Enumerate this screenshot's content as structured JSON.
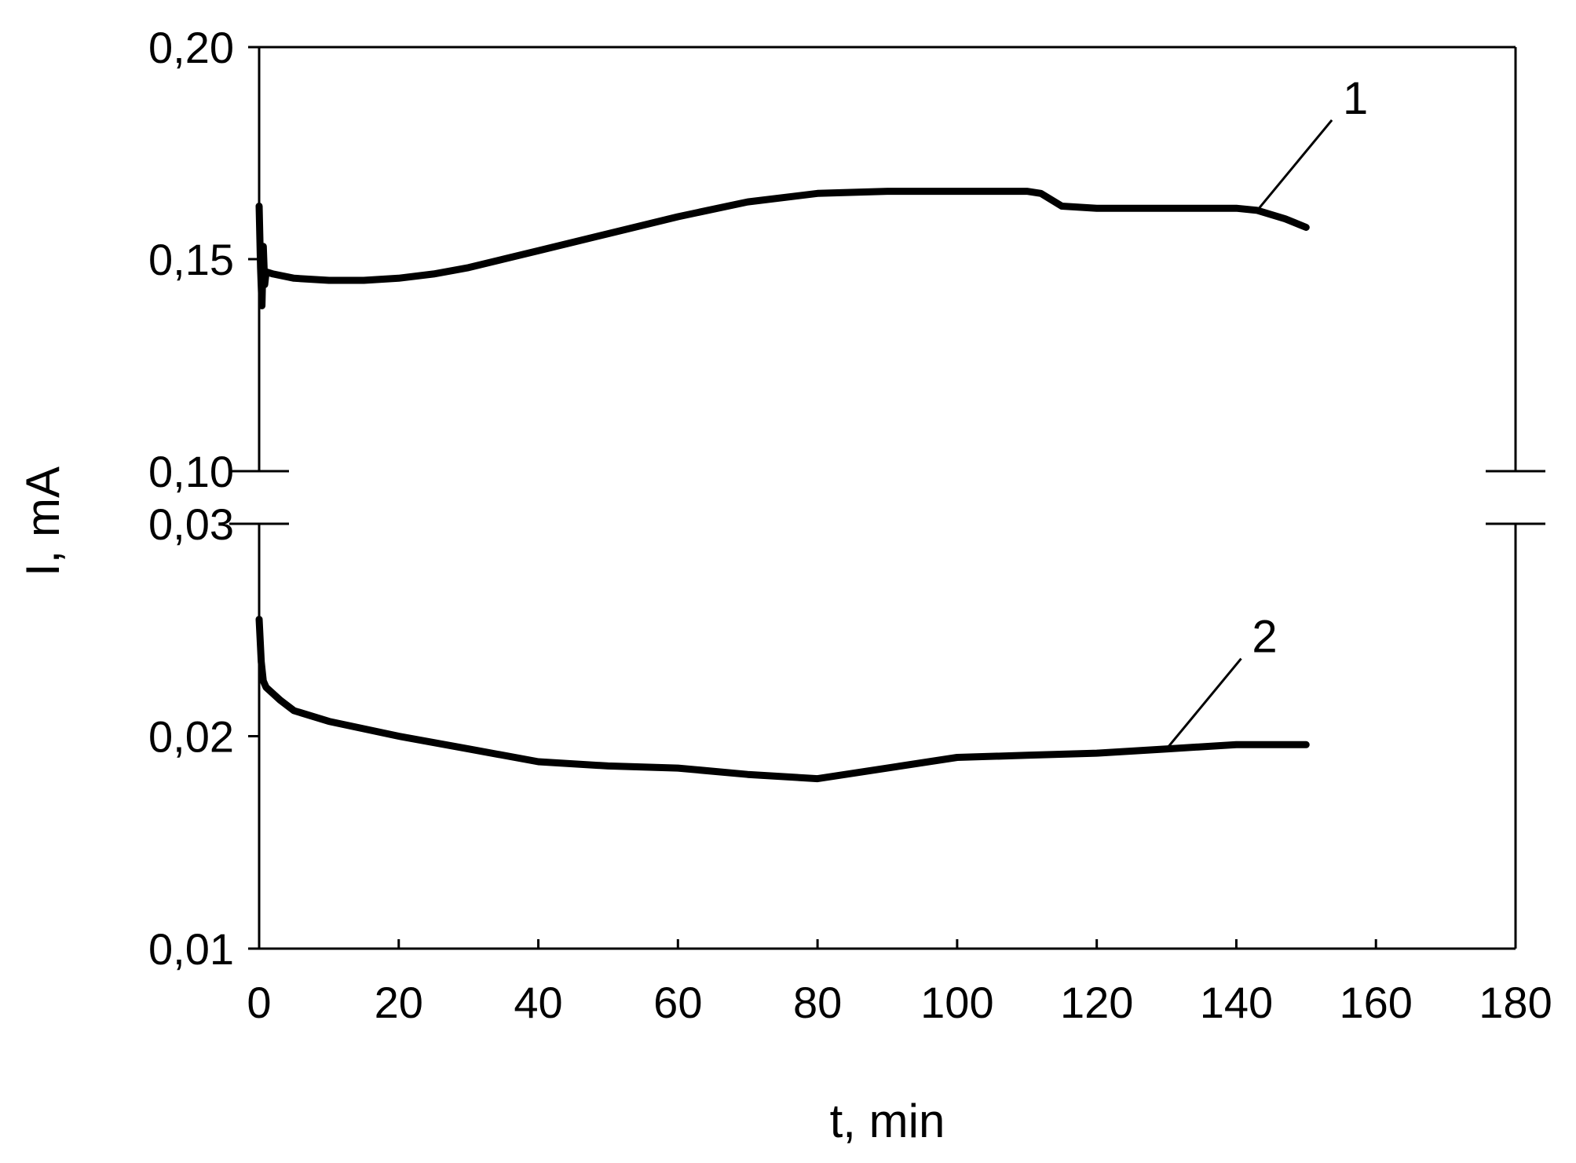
{
  "chart_data": {
    "type": "line",
    "title": "",
    "xlabel": "t, min",
    "ylabel": "I, mA",
    "xlim": [
      0,
      180
    ],
    "xticks": [
      "0",
      "20",
      "40",
      "60",
      "80",
      "100",
      "120",
      "140",
      "160",
      "180"
    ],
    "x_tick_values": [
      0,
      20,
      40,
      60,
      80,
      100,
      120,
      140,
      160,
      180
    ],
    "broken_y_axis": true,
    "y_segments": [
      {
        "range": [
          0.1,
          0.2
        ],
        "ticks": [
          "0,10",
          "0,15",
          "0,20"
        ],
        "tick_values": [
          0.1,
          0.15,
          0.2
        ]
      },
      {
        "range": [
          0.01,
          0.03
        ],
        "ticks": [
          "0,01",
          "0,02",
          "0,03"
        ],
        "tick_values": [
          0.01,
          0.02,
          0.03
        ]
      }
    ],
    "grid": false,
    "line_color": "#000000",
    "series": [
      {
        "name": "1",
        "x": [
          0,
          0.2,
          0.4,
          0.6,
          0.8,
          1,
          2,
          5,
          10,
          15,
          20,
          25,
          30,
          35,
          40,
          50,
          60,
          70,
          80,
          90,
          100,
          110,
          112,
          115,
          120,
          130,
          140,
          143,
          147,
          150
        ],
        "y": [
          0.1625,
          0.148,
          0.139,
          0.153,
          0.144,
          0.147,
          0.1465,
          0.1455,
          0.145,
          0.145,
          0.1455,
          0.1465,
          0.148,
          0.15,
          0.152,
          0.156,
          0.16,
          0.1635,
          0.1655,
          0.166,
          0.166,
          0.166,
          0.1655,
          0.1625,
          0.162,
          0.162,
          0.162,
          0.1615,
          0.1595,
          0.1575
        ]
      },
      {
        "name": "2",
        "x": [
          0,
          0.3,
          0.6,
          1,
          3,
          5,
          10,
          20,
          30,
          40,
          50,
          60,
          70,
          80,
          90,
          100,
          110,
          120,
          130,
          140,
          150
        ],
        "y": [
          0.0255,
          0.0235,
          0.0226,
          0.0223,
          0.0217,
          0.0212,
          0.0207,
          0.02,
          0.0194,
          0.0188,
          0.0186,
          0.0185,
          0.0182,
          0.018,
          0.0185,
          0.019,
          0.0191,
          0.0192,
          0.0194,
          0.0196,
          0.0196
        ]
      }
    ]
  }
}
